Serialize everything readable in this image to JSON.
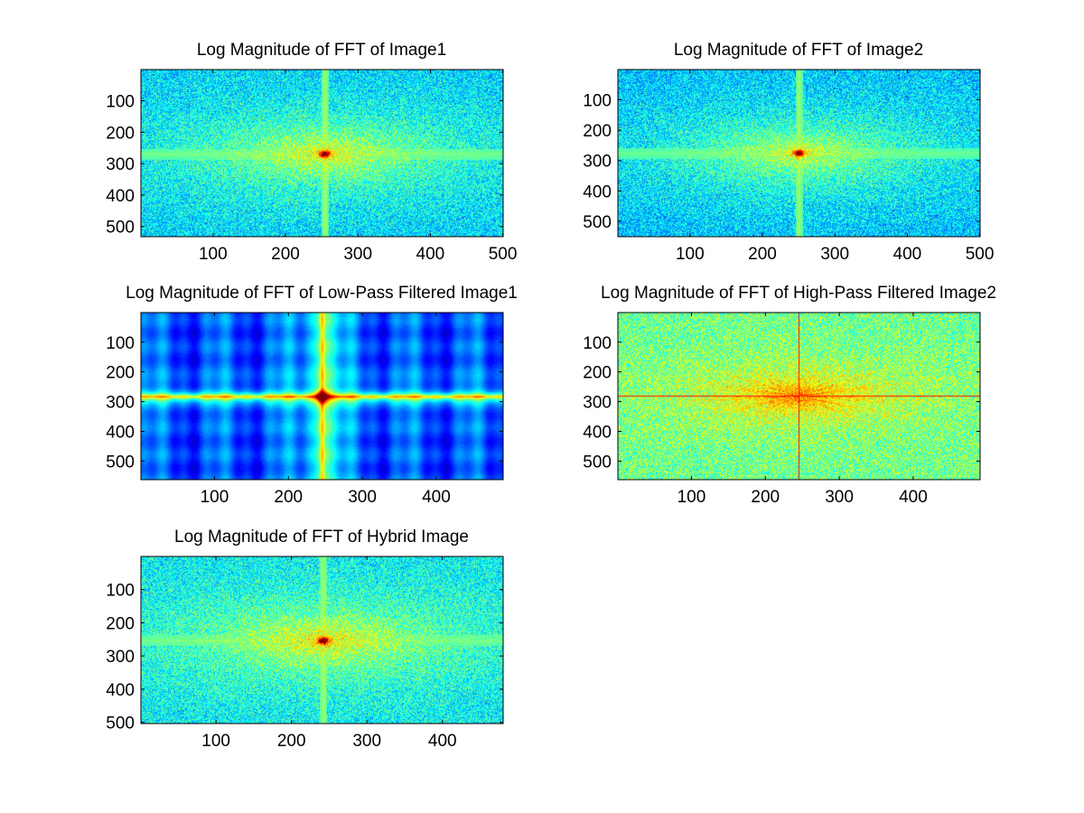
{
  "figure": {
    "background": "#ffffff",
    "colormap": "jet",
    "colormap_stops": [
      "#00008f",
      "#0000ff",
      "#0080ff",
      "#00ffff",
      "#80ff80",
      "#ffff00",
      "#ff8000",
      "#ff0000",
      "#800000"
    ]
  },
  "chart_data": [
    {
      "type": "heatmap",
      "title": "Log Magnitude of FFT of Image1",
      "xlabel": "",
      "ylabel": "",
      "xlim": [
        0.5,
        500.5
      ],
      "ylim": [
        0.5,
        532.5
      ],
      "y_reversed": true,
      "xticks": [
        100,
        200,
        300,
        400,
        500
      ],
      "yticks": [
        100,
        200,
        300,
        400,
        500
      ],
      "pattern": "spectrum",
      "center": [
        254,
        268
      ],
      "spread": [
        150,
        95
      ],
      "line_strength": [
        0.62,
        0.62
      ],
      "bias": 0.0
    },
    {
      "type": "heatmap",
      "title": "Log Magnitude of FFT of Image2",
      "xlabel": "",
      "ylabel": "",
      "xlim": [
        0.5,
        500.5
      ],
      "ylim": [
        0.5,
        550.5
      ],
      "y_reversed": true,
      "xticks": [
        100,
        200,
        300,
        400,
        500
      ],
      "yticks": [
        100,
        200,
        300,
        400,
        500
      ],
      "pattern": "spectrum",
      "center": [
        250,
        275
      ],
      "spread": [
        145,
        100
      ],
      "line_strength": [
        0.55,
        0.5
      ],
      "bias": -0.02
    },
    {
      "type": "heatmap",
      "title": "Log Magnitude of FFT of Low-Pass Filtered Image1",
      "xlabel": "",
      "ylabel": "",
      "xlim": [
        0.5,
        490.5
      ],
      "ylim": [
        0.5,
        562.5
      ],
      "y_reversed": true,
      "xticks": [
        100,
        200,
        300,
        400
      ],
      "yticks": [
        100,
        200,
        300,
        400,
        500
      ],
      "pattern": "lowpass",
      "center": [
        245,
        282
      ],
      "spread": [
        16,
        16
      ],
      "line_strength": [
        0.55,
        0.45
      ],
      "bias": 0.0
    },
    {
      "type": "heatmap",
      "title": "Log Magnitude of FFT of High-Pass Filtered Image2",
      "xlabel": "",
      "ylabel": "",
      "xlim": [
        0.5,
        490.5
      ],
      "ylim": [
        0.5,
        562.5
      ],
      "y_reversed": true,
      "xticks": [
        100,
        200,
        300,
        400
      ],
      "yticks": [
        100,
        200,
        300,
        400,
        500
      ],
      "pattern": "highpass",
      "center": [
        245,
        280
      ],
      "spread": [
        120,
        80
      ],
      "line_strength": [
        0.85,
        0.85
      ],
      "bias": 0.0
    },
    {
      "type": "heatmap",
      "title": "Log Magnitude of FFT of Hybrid Image",
      "xlabel": "",
      "ylabel": "",
      "xlim": [
        0.5,
        480.5
      ],
      "ylim": [
        0.5,
        503.5
      ],
      "y_reversed": true,
      "xticks": [
        100,
        200,
        300,
        400
      ],
      "yticks": [
        100,
        200,
        300,
        400,
        500
      ],
      "pattern": "spectrum",
      "center": [
        242,
        253
      ],
      "spread": [
        140,
        90
      ],
      "line_strength": [
        0.6,
        0.55
      ],
      "bias": 0.03
    }
  ]
}
